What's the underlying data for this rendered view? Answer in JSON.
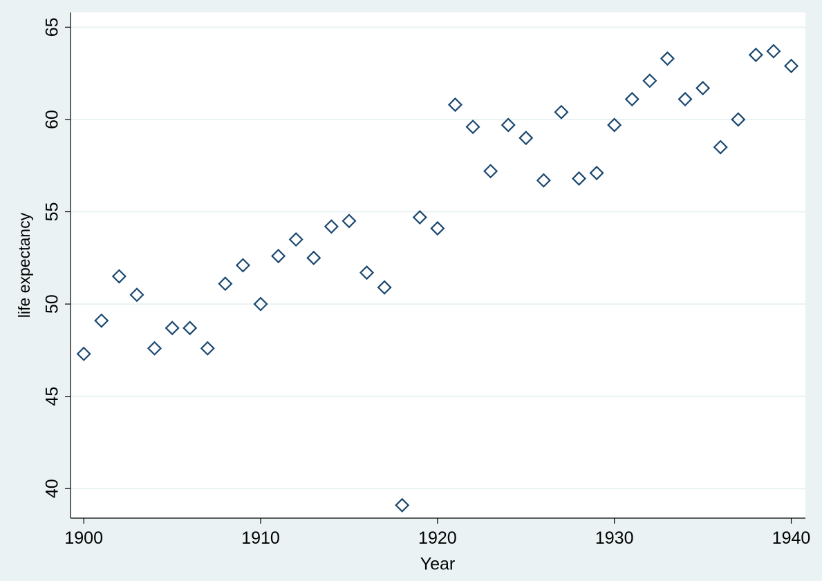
{
  "chart_data": {
    "type": "scatter",
    "x_label": "Year",
    "y_label": "life expectancy",
    "x": [
      1900,
      1901,
      1902,
      1903,
      1904,
      1905,
      1906,
      1907,
      1908,
      1909,
      1910,
      1911,
      1912,
      1913,
      1914,
      1915,
      1916,
      1917,
      1918,
      1919,
      1920,
      1921,
      1922,
      1923,
      1924,
      1925,
      1926,
      1927,
      1928,
      1929,
      1930,
      1931,
      1932,
      1933,
      1934,
      1935,
      1936,
      1937,
      1938,
      1939,
      1940
    ],
    "values": [
      47.3,
      49.1,
      51.5,
      50.5,
      47.6,
      48.7,
      48.7,
      47.6,
      51.1,
      52.1,
      50.0,
      52.6,
      53.5,
      52.5,
      54.2,
      54.5,
      51.7,
      50.9,
      39.1,
      54.7,
      54.1,
      60.8,
      59.6,
      57.2,
      59.7,
      59.0,
      56.7,
      60.4,
      56.8,
      57.1,
      59.7,
      61.1,
      62.1,
      63.3,
      61.1,
      61.7,
      58.5,
      60.0,
      63.5,
      63.7,
      62.9
    ],
    "color": "#1a476f",
    "xlim": [
      1899.25,
      1940.8
    ],
    "ylim": [
      38.4,
      65.8
    ],
    "xticks": [
      1900,
      1910,
      1920,
      1930,
      1940
    ],
    "yticks": [
      40,
      45,
      50,
      55,
      60,
      65
    ],
    "grid": true
  }
}
